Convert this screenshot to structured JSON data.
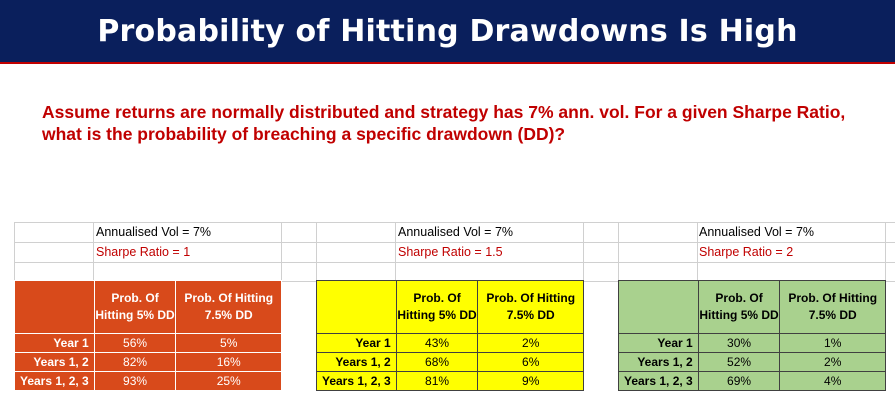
{
  "title": "Probability of Hitting Drawdowns Is High",
  "intro": {
    "line1": "Assume returns are normally distributed and strategy has 7% ann. vol. For a given Sharpe Ratio,",
    "line2": "what is the probability of breaching a specific drawdown (DD)?"
  },
  "colors": {
    "title_bg": "#0a1f5c",
    "accent_red": "#c00000",
    "red": "#d84a1b",
    "yellow": "#ffff00",
    "green": "#a9d18e"
  },
  "tables": [
    {
      "vol_label": "Annualised Vol = 7%",
      "sharpe_label": "Sharpe Ratio = 1",
      "col1": "Prob. Of Hitting 5% DD",
      "col2": "Prob. Of Hitting 7.5% DD",
      "rows": [
        {
          "label": "Year 1",
          "p5": "56%",
          "p75": "5%"
        },
        {
          "label": "Years 1, 2",
          "p5": "82%",
          "p75": "16%"
        },
        {
          "label": "Years 1, 2, 3",
          "p5": "93%",
          "p75": "25%"
        }
      ]
    },
    {
      "vol_label": "Annualised Vol = 7%",
      "sharpe_label": "Sharpe Ratio = 1.5",
      "col1": "Prob. Of Hitting 5% DD",
      "col2": "Prob. Of Hitting 7.5% DD",
      "rows": [
        {
          "label": "Year 1",
          "p5": "43%",
          "p75": "2%"
        },
        {
          "label": "Years 1, 2",
          "p5": "68%",
          "p75": "6%"
        },
        {
          "label": "Years 1, 2, 3",
          "p5": "81%",
          "p75": "9%"
        }
      ]
    },
    {
      "vol_label": "Annualised Vol = 7%",
      "sharpe_label": "Sharpe Ratio = 2",
      "col1": "Prob. Of Hitting 5% DD",
      "col2": "Prob. Of Hitting 7.5% DD",
      "rows": [
        {
          "label": "Year 1",
          "p5": "30%",
          "p75": "1%"
        },
        {
          "label": "Years 1, 2",
          "p5": "52%",
          "p75": "2%"
        },
        {
          "label": "Years 1, 2, 3",
          "p5": "69%",
          "p75": "4%"
        }
      ]
    }
  ]
}
